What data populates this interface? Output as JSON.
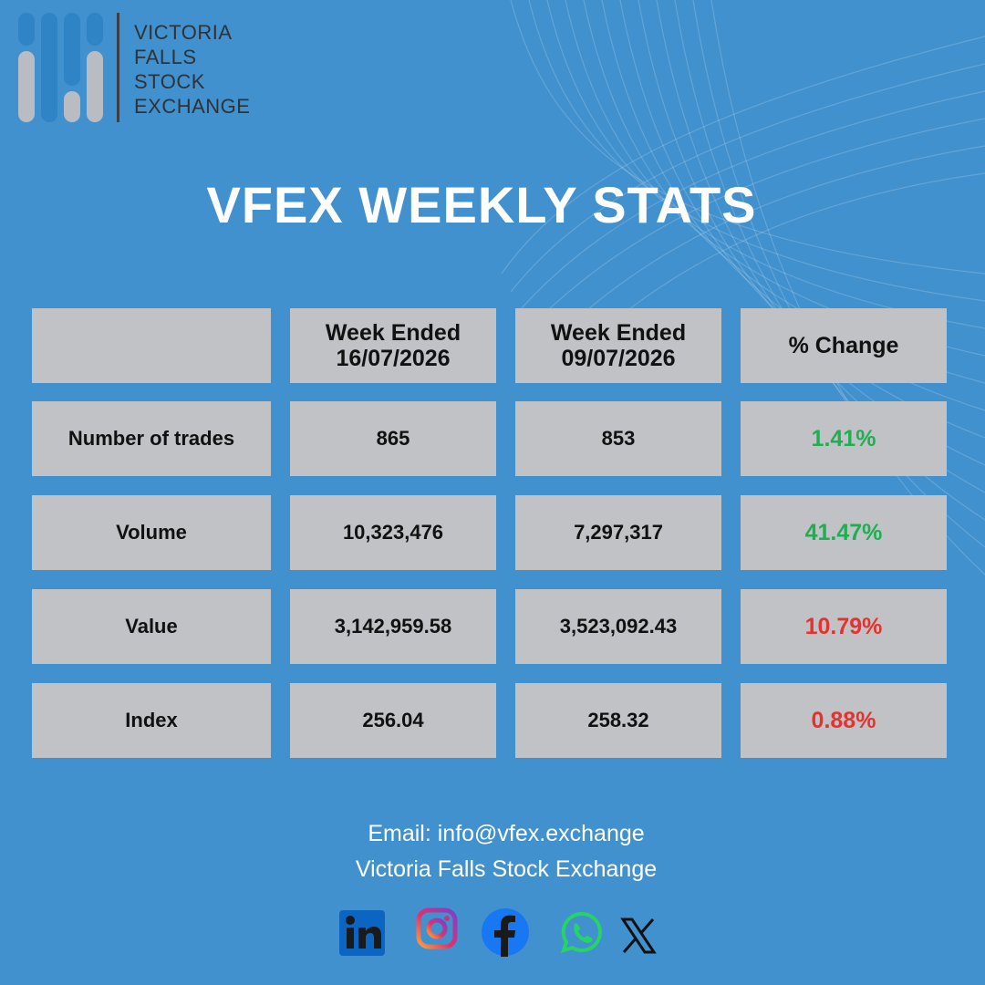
{
  "colors": {
    "background": "#4191ce",
    "cell": "#c1c2c6",
    "positive": "#1fae52",
    "negative": "#e5322e",
    "logo_blue": "#2f84c6",
    "logo_gray": "#b9bcc2",
    "logo_text": "#2f3238"
  },
  "logo": {
    "line1": "VICTORIA",
    "line2": "FALLS",
    "line3": "STOCK",
    "line4": "EXCHANGE"
  },
  "title": "VFEX WEEKLY STATS",
  "table": {
    "headers": {
      "col1_line1": "Week Ended",
      "col1_line2": "16/07/2026",
      "col2_line1": "Week Ended",
      "col2_line2": "09/07/2026",
      "col3": "% Change"
    },
    "rows": [
      {
        "label": "Number of trades",
        "current": "865",
        "previous": "853",
        "change": "1.41%",
        "direction": "up"
      },
      {
        "label": "Volume",
        "current": "10,323,476",
        "previous": "7,297,317",
        "change": "41.47%",
        "direction": "up"
      },
      {
        "label": "Value",
        "current": "3,142,959.58",
        "previous": "3,523,092.43",
        "change": "10.79%",
        "direction": "down"
      },
      {
        "label": "Index",
        "current": "256.04",
        "previous": "258.32",
        "change": "0.88%",
        "direction": "down"
      }
    ]
  },
  "footer": {
    "email": "Email: info@vfex.exchange",
    "org": "Victoria Falls Stock Exchange"
  },
  "social": [
    "linkedin-icon",
    "instagram-icon",
    "facebook-icon",
    "whatsapp-icon",
    "x-icon"
  ]
}
